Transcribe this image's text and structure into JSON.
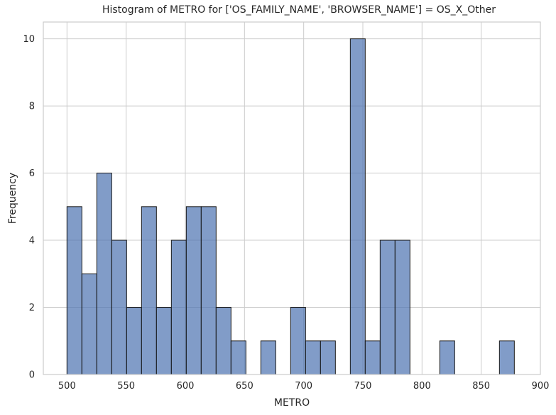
{
  "chart_data": {
    "type": "bar",
    "title": "Histogram of METRO for ['OS_FAMILY_NAME', 'BROWSER_NAME'] = OS_X_Other",
    "xlabel": "METRO",
    "ylabel": "Frequency",
    "xlim": [
      480,
      900
    ],
    "ylim": [
      0,
      10.5
    ],
    "xticks": [
      500,
      550,
      600,
      650,
      700,
      750,
      800,
      850,
      900
    ],
    "yticks": [
      0,
      2,
      4,
      6,
      8,
      10
    ],
    "grid": true,
    "bin_width": 12.6,
    "bins": [
      {
        "x0": 500.0,
        "x1": 512.6,
        "value": 5
      },
      {
        "x0": 512.6,
        "x1": 525.2,
        "value": 3
      },
      {
        "x0": 525.2,
        "x1": 537.8,
        "value": 6
      },
      {
        "x0": 537.8,
        "x1": 550.4,
        "value": 4
      },
      {
        "x0": 550.4,
        "x1": 563.0,
        "value": 2
      },
      {
        "x0": 563.0,
        "x1": 575.6,
        "value": 5
      },
      {
        "x0": 575.6,
        "x1": 588.2,
        "value": 2
      },
      {
        "x0": 588.2,
        "x1": 600.8,
        "value": 4
      },
      {
        "x0": 600.8,
        "x1": 613.4,
        "value": 5
      },
      {
        "x0": 613.4,
        "x1": 626.0,
        "value": 5
      },
      {
        "x0": 626.0,
        "x1": 638.6,
        "value": 2
      },
      {
        "x0": 638.6,
        "x1": 651.2,
        "value": 1
      },
      {
        "x0": 663.8,
        "x1": 676.4,
        "value": 1
      },
      {
        "x0": 689.0,
        "x1": 701.6,
        "value": 2
      },
      {
        "x0": 701.6,
        "x1": 714.2,
        "value": 1
      },
      {
        "x0": 714.2,
        "x1": 726.8,
        "value": 1
      },
      {
        "x0": 739.4,
        "x1": 752.0,
        "value": 10
      },
      {
        "x0": 752.0,
        "x1": 764.6,
        "value": 1
      },
      {
        "x0": 764.6,
        "x1": 777.2,
        "value": 4
      },
      {
        "x0": 777.2,
        "x1": 789.8,
        "value": 4
      },
      {
        "x0": 815.0,
        "x1": 827.6,
        "value": 1
      },
      {
        "x0": 865.4,
        "x1": 878.0,
        "value": 1
      }
    ],
    "bar_color": "#4c72b0"
  }
}
